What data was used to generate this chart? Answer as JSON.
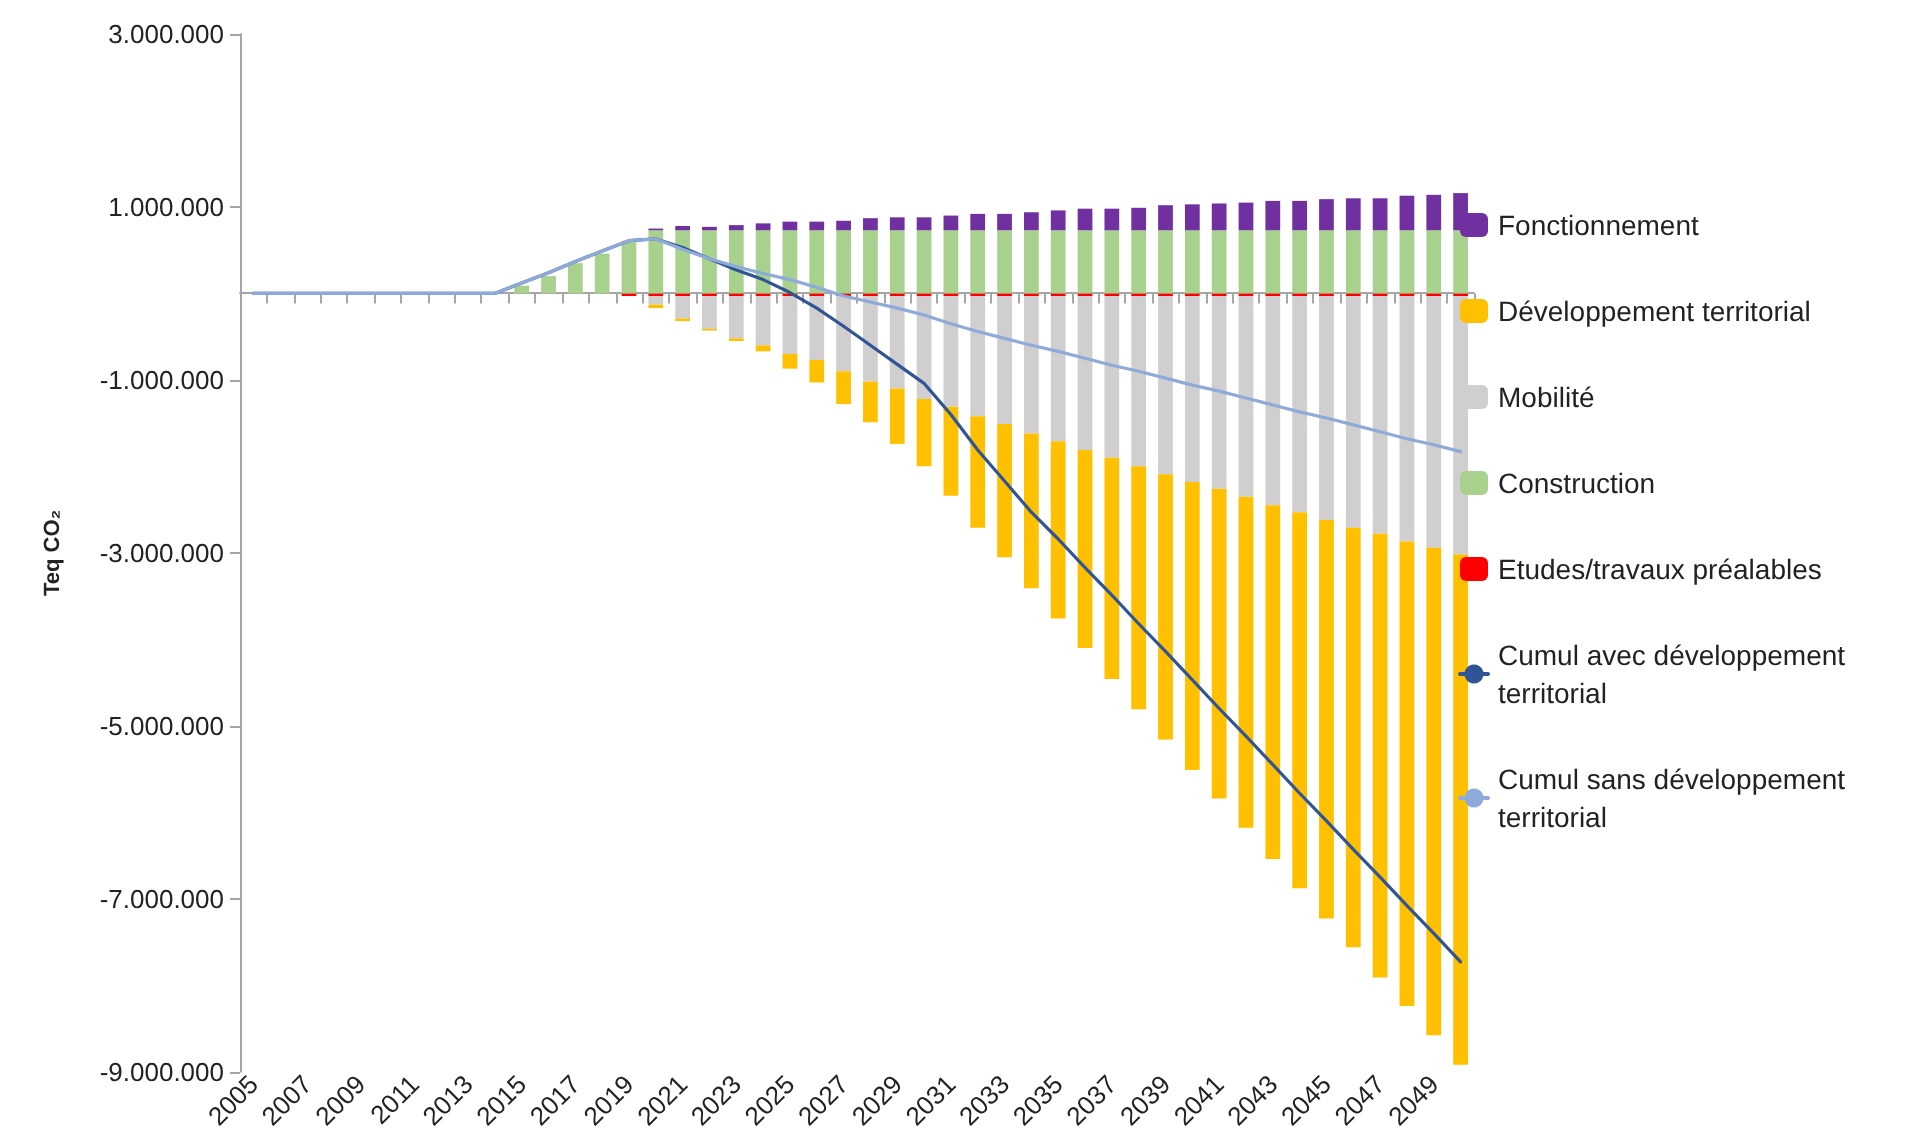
{
  "chart_data": {
    "type": "bar",
    "stacked": true,
    "ylabel": "Teq CO₂",
    "categories": [
      "2005",
      null,
      "2007",
      null,
      "2009",
      null,
      "2011",
      null,
      "2013",
      null,
      "2015",
      null,
      "2017",
      null,
      "2019",
      null,
      "2021",
      null,
      "2023",
      null,
      "2025",
      null,
      "2027",
      null,
      "2029",
      null,
      "2031",
      null,
      "2033",
      null,
      "2035",
      null,
      "2037",
      null,
      "2039",
      null,
      "2041",
      null,
      "2043",
      null,
      "2045",
      null,
      "2047",
      null,
      "2049",
      null
    ],
    "ylim": [
      -9000000,
      3000000
    ],
    "yticks": [
      {
        "value": -9000000,
        "label": "-9.000.000"
      },
      {
        "value": -7000000,
        "label": "-7.000.000"
      },
      {
        "value": -5000000,
        "label": "-5.000.000"
      },
      {
        "value": -3000000,
        "label": "-3.000.000"
      },
      {
        "value": -1000000,
        "label": "-1.000.000"
      },
      {
        "value": 1000000,
        "label": "1.000.000"
      },
      {
        "value": 3000000,
        "label": "3.000.000"
      }
    ],
    "grid": false,
    "legend": "right",
    "marker": "none",
    "line_style": "solid",
    "series": [
      {
        "name": "Etudes/travaux préalables",
        "color": "#ff0000",
        "values": [
          null,
          null,
          null,
          null,
          null,
          null,
          null,
          null,
          null,
          null,
          null,
          null,
          null,
          null,
          -30000,
          -30000,
          -30000,
          -30000,
          -30000,
          -30000,
          -30000,
          -30000,
          -30000,
          -30000,
          -30000,
          -30000,
          -30000,
          -30000,
          -30000,
          -30000,
          -30000,
          -30000,
          -30000,
          -30000,
          -30000,
          -30000,
          -30000,
          -30000,
          -30000,
          -30000,
          -30000,
          -30000,
          -30000,
          -30000,
          -30000,
          -30000
        ]
      },
      {
        "name": "Construction",
        "color": "#a9d18e",
        "values": [
          null,
          null,
          null,
          null,
          null,
          null,
          null,
          null,
          null,
          null,
          90000,
          200000,
          350000,
          460000,
          610000,
          730000,
          730000,
          730000,
          730000,
          730000,
          730000,
          730000,
          730000,
          730000,
          730000,
          730000,
          730000,
          730000,
          730000,
          730000,
          730000,
          730000,
          730000,
          730000,
          730000,
          730000,
          730000,
          730000,
          730000,
          730000,
          730000,
          730000,
          730000,
          730000,
          730000,
          730000
        ]
      },
      {
        "name": "Mobilité",
        "color": "#d0cece",
        "values": [
          null,
          null,
          null,
          null,
          null,
          null,
          null,
          null,
          null,
          null,
          null,
          null,
          null,
          null,
          null,
          -100000,
          -260000,
          -380000,
          -490000,
          -570000,
          -670000,
          -740000,
          -870000,
          -990000,
          -1070000,
          -1190000,
          -1280000,
          -1390000,
          -1480000,
          -1590000,
          -1680000,
          -1780000,
          -1870000,
          -1970000,
          -2060000,
          -2150000,
          -2230000,
          -2320000,
          -2420000,
          -2500000,
          -2590000,
          -2680000,
          -2750000,
          -2840000,
          -2910000,
          -2990000
        ]
      },
      {
        "name": "Développement territorial",
        "color": "#ffc000",
        "values": [
          null,
          null,
          null,
          null,
          null,
          null,
          null,
          null,
          null,
          null,
          null,
          null,
          null,
          null,
          null,
          -40000,
          -30000,
          -20000,
          -30000,
          -70000,
          -170000,
          -260000,
          -380000,
          -470000,
          -640000,
          -780000,
          -1030000,
          -1290000,
          -1540000,
          -1790000,
          -2050000,
          -2290000,
          -2560000,
          -2810000,
          -3070000,
          -3330000,
          -3580000,
          -3830000,
          -4090000,
          -4350000,
          -4610000,
          -4850000,
          -5130000,
          -5370000,
          -5640000,
          -5900000
        ]
      },
      {
        "name": "Fonctionnement",
        "color": "#7030a0",
        "values": [
          null,
          null,
          null,
          null,
          null,
          null,
          null,
          null,
          null,
          null,
          null,
          null,
          null,
          null,
          null,
          20000,
          50000,
          40000,
          60000,
          80000,
          100000,
          100000,
          110000,
          140000,
          150000,
          150000,
          170000,
          190000,
          190000,
          210000,
          230000,
          250000,
          250000,
          260000,
          290000,
          300000,
          310000,
          320000,
          340000,
          340000,
          360000,
          370000,
          370000,
          400000,
          410000,
          430000
        ]
      },
      {
        "name": "Cumul avec développement territorial",
        "type": "line",
        "color": "#2f5597",
        "values": [
          0,
          0,
          0,
          0,
          0,
          0,
          0,
          0,
          0,
          0,
          120000,
          240000,
          370000,
          490000,
          610000,
          630000,
          530000,
          400000,
          270000,
          160000,
          10000,
          -170000,
          -380000,
          -600000,
          -820000,
          -1040000,
          -1400000,
          -1810000,
          -2170000,
          -2530000,
          -2840000,
          -3170000,
          -3490000,
          -3820000,
          -4140000,
          -4470000,
          -4800000,
          -5120000,
          -5450000,
          -5780000,
          -6100000,
          -6430000,
          -6750000,
          -7080000,
          -7400000,
          -7730000
        ]
      },
      {
        "name": "Cumul sans développement territorial",
        "type": "line",
        "color": "#8eaadb",
        "values": [
          0,
          0,
          0,
          0,
          0,
          0,
          0,
          0,
          0,
          0,
          120000,
          240000,
          370000,
          490000,
          610000,
          630000,
          510000,
          400000,
          310000,
          230000,
          160000,
          70000,
          -30000,
          -100000,
          -170000,
          -250000,
          -350000,
          -440000,
          -520000,
          -600000,
          -670000,
          -750000,
          -830000,
          -900000,
          -980000,
          -1060000,
          -1130000,
          -1210000,
          -1290000,
          -1370000,
          -1440000,
          -1520000,
          -1600000,
          -1680000,
          -1750000,
          -1830000
        ]
      }
    ]
  }
}
